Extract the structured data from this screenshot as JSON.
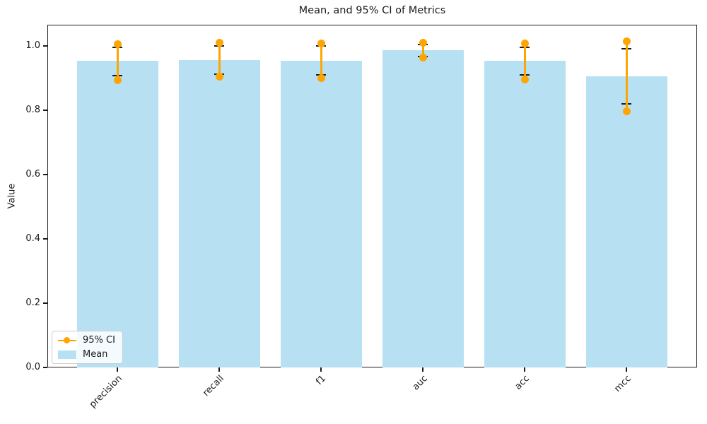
{
  "figure": {
    "title": "Mean, and 95% CI of Metrics"
  },
  "chart_data": {
    "type": "bar",
    "title": "Mean, and 95% CI of Metrics",
    "xlabel": "",
    "ylabel": "Value",
    "categories": [
      "precision",
      "recall",
      "f1",
      "auc",
      "acc",
      "mcc"
    ],
    "series": [
      {
        "name": "Mean",
        "type": "bar",
        "color": "#b7e1f3",
        "values": [
          0.954,
          0.956,
          0.954,
          0.986,
          0.954,
          0.906
        ]
      },
      {
        "name": "95% CI",
        "type": "errorbar-line-with-dots",
        "color": "#ffa500",
        "low": [
          0.894,
          0.904,
          0.899,
          0.963,
          0.895,
          0.797
        ],
        "high": [
          1.006,
          1.009,
          1.008,
          1.009,
          1.008,
          1.014
        ]
      },
      {
        "name": "error-caps",
        "type": "caps",
        "color": "#1a1a1a",
        "low": [
          0.908,
          0.913,
          0.911,
          0.966,
          0.91,
          0.819
        ],
        "high": [
          0.995,
          1.0,
          0.999,
          1.005,
          0.996,
          0.992
        ]
      }
    ],
    "yticks": [
      0.0,
      0.2,
      0.4,
      0.6,
      0.8,
      1.0
    ],
    "ytick_labels": [
      "0.0",
      "0.2",
      "0.4",
      "0.6",
      "0.8",
      "1.0"
    ],
    "ylim": [
      0,
      1.066
    ],
    "grid": false,
    "legend": {
      "position": "lower left",
      "entries": [
        "95% CI",
        "Mean"
      ]
    }
  },
  "colors": {
    "bar_fill": "#b7e1f3",
    "ci_orange": "#ffa500",
    "cap_black": "#1a1a1a",
    "spine": "#1a1a1a",
    "background": "#ffffff"
  }
}
